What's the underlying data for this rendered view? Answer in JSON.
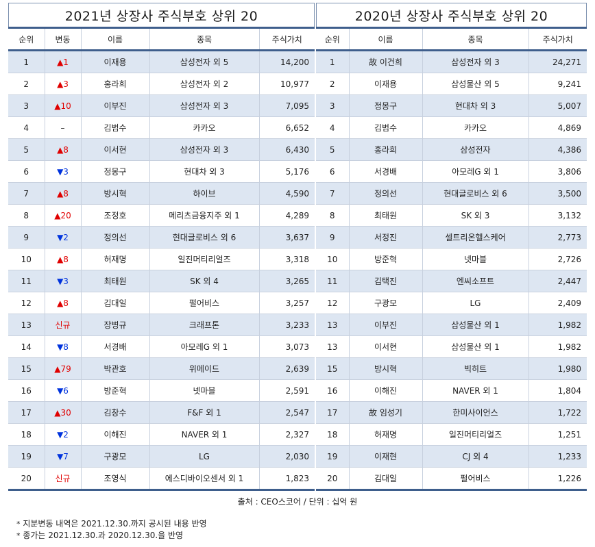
{
  "left": {
    "title": "2021년 상장사 주식부호 상위 20",
    "headers": [
      "순위",
      "변동",
      "이름",
      "종목",
      "주식가치"
    ],
    "rows": [
      {
        "rank": "1",
        "change": "▲1",
        "dir": "up",
        "name": "이재용",
        "stock": "삼성전자 외 5",
        "value": "14,200"
      },
      {
        "rank": "2",
        "change": "▲3",
        "dir": "up",
        "name": "홍라희",
        "stock": "삼성전자 외 2",
        "value": "10,977"
      },
      {
        "rank": "3",
        "change": "▲10",
        "dir": "up",
        "name": "이부진",
        "stock": "삼성전자 외 3",
        "value": "7,095"
      },
      {
        "rank": "4",
        "change": "–",
        "dir": "flat",
        "name": "김범수",
        "stock": "카카오",
        "value": "6,652"
      },
      {
        "rank": "5",
        "change": "▲8",
        "dir": "up",
        "name": "이서현",
        "stock": "삼성전자 외 3",
        "value": "6,430"
      },
      {
        "rank": "6",
        "change": "▼3",
        "dir": "down",
        "name": "정몽구",
        "stock": "현대차 외 3",
        "value": "5,176"
      },
      {
        "rank": "7",
        "change": "▲8",
        "dir": "up",
        "name": "방시혁",
        "stock": "하이브",
        "value": "4,590"
      },
      {
        "rank": "8",
        "change": "▲20",
        "dir": "up",
        "name": "조정호",
        "stock": "메리츠금융지주 외 1",
        "value": "4,289"
      },
      {
        "rank": "9",
        "change": "▼2",
        "dir": "down",
        "name": "정의선",
        "stock": "현대글로비스 외 6",
        "value": "3,637"
      },
      {
        "rank": "10",
        "change": "▲8",
        "dir": "up",
        "name": "허재명",
        "stock": "일진머티리얼즈",
        "value": "3,318"
      },
      {
        "rank": "11",
        "change": "▼3",
        "dir": "down",
        "name": "최태원",
        "stock": "SK 외 4",
        "value": "3,265"
      },
      {
        "rank": "12",
        "change": "▲8",
        "dir": "up",
        "name": "김대일",
        "stock": "펄어비스",
        "value": "3,257"
      },
      {
        "rank": "13",
        "change": "신규",
        "dir": "new",
        "name": "장병규",
        "stock": "크래프톤",
        "value": "3,233"
      },
      {
        "rank": "14",
        "change": "▼8",
        "dir": "down",
        "name": "서경배",
        "stock": "아모레G 외 1",
        "value": "3,073"
      },
      {
        "rank": "15",
        "change": "▲79",
        "dir": "up",
        "name": "박관호",
        "stock": "위메이드",
        "value": "2,639"
      },
      {
        "rank": "16",
        "change": "▼6",
        "dir": "down",
        "name": "방준혁",
        "stock": "넷마블",
        "value": "2,591"
      },
      {
        "rank": "17",
        "change": "▲30",
        "dir": "up",
        "name": "김창수",
        "stock": "F&F 외 1",
        "value": "2,547"
      },
      {
        "rank": "18",
        "change": "▼2",
        "dir": "down",
        "name": "이해진",
        "stock": "NAVER 외 1",
        "value": "2,327"
      },
      {
        "rank": "19",
        "change": "▼7",
        "dir": "down",
        "name": "구광모",
        "stock": "LG",
        "value": "2,030"
      },
      {
        "rank": "20",
        "change": "신규",
        "dir": "new",
        "name": "조영식",
        "stock": "에스디바이오센서 외 1",
        "value": "1,823"
      }
    ]
  },
  "right": {
    "title": "2020년 상장사 주식부호 상위 20",
    "headers": [
      "순위",
      "이름",
      "종목",
      "주식가치"
    ],
    "rows": [
      {
        "rank": "1",
        "name": "故 이건희",
        "stock": "삼성전자 외 3",
        "value": "24,271"
      },
      {
        "rank": "2",
        "name": "이재용",
        "stock": "삼성물산 외 5",
        "value": "9,241"
      },
      {
        "rank": "3",
        "name": "정몽구",
        "stock": "현대차 외 3",
        "value": "5,007"
      },
      {
        "rank": "4",
        "name": "김범수",
        "stock": "카카오",
        "value": "4,869"
      },
      {
        "rank": "5",
        "name": "홍라희",
        "stock": "삼성전자",
        "value": "4,386"
      },
      {
        "rank": "6",
        "name": "서경배",
        "stock": "아모레G 외 1",
        "value": "3,806"
      },
      {
        "rank": "7",
        "name": "정의선",
        "stock": "현대글로비스 외 6",
        "value": "3,500"
      },
      {
        "rank": "8",
        "name": "최태원",
        "stock": "SK 외 3",
        "value": "3,132"
      },
      {
        "rank": "9",
        "name": "서정진",
        "stock": "셀트리온헬스케어",
        "value": "2,773"
      },
      {
        "rank": "10",
        "name": "방준혁",
        "stock": "넷마블",
        "value": "2,726"
      },
      {
        "rank": "11",
        "name": "김택진",
        "stock": "엔씨소프트",
        "value": "2,447"
      },
      {
        "rank": "12",
        "name": "구광모",
        "stock": "LG",
        "value": "2,409"
      },
      {
        "rank": "13",
        "name": "이부진",
        "stock": "삼성물산 외 1",
        "value": "1,982"
      },
      {
        "rank": "13",
        "name": "이서현",
        "stock": "삼성물산 외 1",
        "value": "1,982"
      },
      {
        "rank": "15",
        "name": "방시혁",
        "stock": "빅히트",
        "value": "1,980"
      },
      {
        "rank": "16",
        "name": "이해진",
        "stock": "NAVER 외 1",
        "value": "1,804"
      },
      {
        "rank": "17",
        "name": "故 임성기",
        "stock": "한미사이언스",
        "value": "1,722"
      },
      {
        "rank": "18",
        "name": "허재명",
        "stock": "일진머티리얼즈",
        "value": "1,251"
      },
      {
        "rank": "19",
        "name": "이재현",
        "stock": "CJ 외 4",
        "value": "1,233"
      },
      {
        "rank": "20",
        "name": "김대일",
        "stock": "펄어비스",
        "value": "1,226"
      }
    ]
  },
  "source": "출처 : CEO스코어 / 단위 : 십억 원",
  "notes": [
    "지분변동 내역은 2021.12.30.까지 공시된 내용 반영",
    "종가는 2021.12.30.과 2020.12.30.을 반영"
  ],
  "note_marker": "*",
  "colors": {
    "header_rule": "#3e5e8c",
    "row_shade": "#dde6f2",
    "up": "#e00000",
    "down": "#0033dd"
  }
}
